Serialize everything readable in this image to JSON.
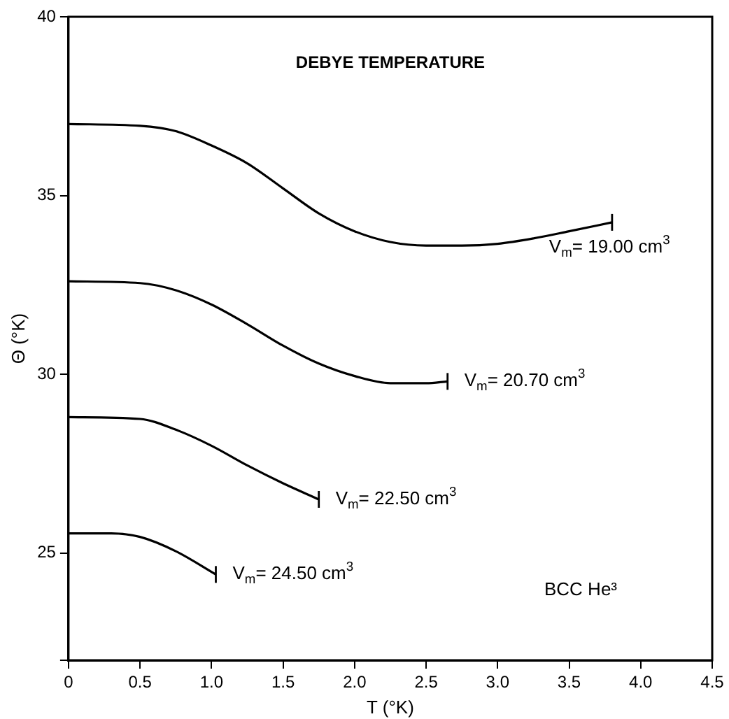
{
  "chart_data": {
    "type": "line",
    "title": "DEBYE TEMPERATURE",
    "xlabel": "T (°K)",
    "ylabel": "Θ (°K)",
    "annotations": [
      "BCC He³"
    ],
    "xlim": [
      0,
      4.5
    ],
    "ylim": [
      22,
      40
    ],
    "xticks": [
      0,
      0.5,
      {
        "value": 1,
        "label": "1.0"
      },
      1.5,
      {
        "value": 2,
        "label": "2.0"
      },
      2.5,
      {
        "value": 3,
        "label": "3.0"
      },
      3.5,
      {
        "value": 4,
        "label": "4.0"
      },
      4.5
    ],
    "yticks": [
      {
        "value": 22,
        "label": null
      },
      25,
      30,
      35,
      40
    ],
    "grid": false,
    "legend": "right",
    "marker": "none",
    "line_style": "solid",
    "series": [
      {
        "name": "V$_{m}$= 19.00 cm$^{3}$",
        "color": "#000000",
        "x": [
          0,
          0.5,
          0.75,
          1,
          1.25,
          1.5,
          1.75,
          2,
          2.25,
          2.5,
          2.75,
          3,
          3.25,
          3.5,
          3.8
        ],
        "values": [
          37,
          36.95,
          36.8,
          36.4,
          35.9,
          35.2,
          34.5,
          34,
          33.7,
          33.6,
          33.6,
          33.65,
          33.8,
          34,
          34.25
        ]
      },
      {
        "name": "V$_{m}$= 20.70 cm$^{3}$",
        "color": "#000000",
        "x": [
          0,
          0.5,
          0.75,
          1,
          1.25,
          1.5,
          1.75,
          2,
          2.25,
          2.5,
          2.65
        ],
        "values": [
          32.6,
          32.55,
          32.35,
          31.95,
          31.4,
          30.8,
          30.3,
          29.95,
          29.75,
          29.75,
          29.8
        ]
      },
      {
        "name": "V$_{m}$= 22.50 cm$^{3}$",
        "color": "#000000",
        "x": [
          0,
          0.5,
          0.75,
          1,
          1.25,
          1.5,
          1.75
        ],
        "values": [
          28.8,
          28.75,
          28.45,
          28,
          27.45,
          26.95,
          26.5
        ]
      },
      {
        "name": "V$_{m}$= 24.50 cm$^{3}$",
        "color": "#000000",
        "x": [
          0,
          0.3,
          0.5,
          0.75,
          1.03
        ],
        "values": [
          25.55,
          25.55,
          25.45,
          25.05,
          24.4
        ]
      }
    ]
  }
}
